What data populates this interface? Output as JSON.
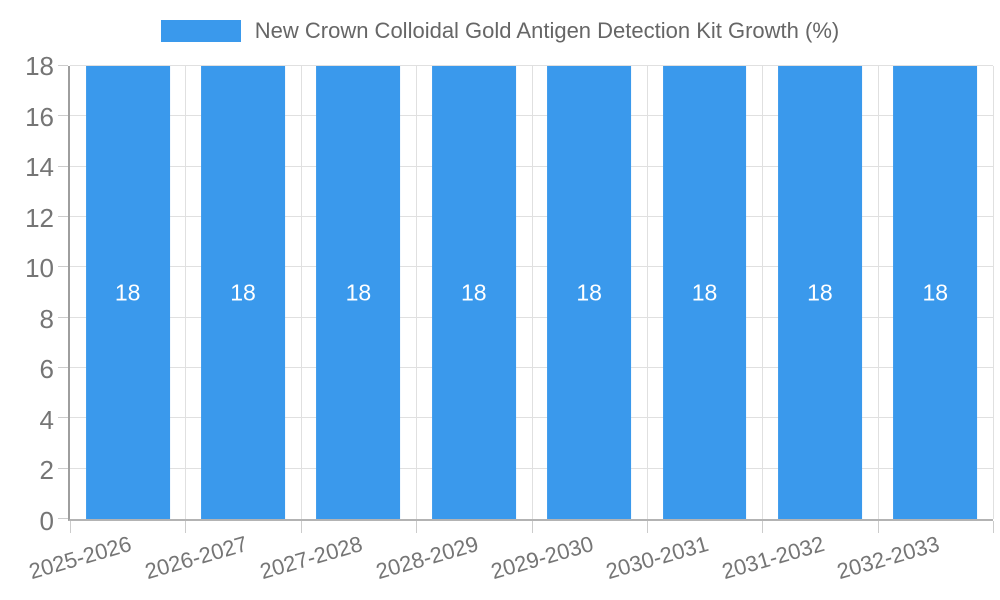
{
  "legend": {
    "label": "New Crown Colloidal Gold Antigen Detection Kit Growth (%)"
  },
  "chart_data": {
    "type": "bar",
    "title": "New Crown Colloidal Gold Antigen Detection Kit Growth (%)",
    "categories": [
      "2025-2026",
      "2026-2027",
      "2027-2028",
      "2028-2029",
      "2029-2030",
      "2030-2031",
      "2031-2032",
      "2032-2033"
    ],
    "values": [
      18,
      18,
      18,
      18,
      18,
      18,
      18,
      18
    ],
    "value_labels": [
      "18",
      "18",
      "18",
      "18",
      "18",
      "18",
      "18",
      "18"
    ],
    "yticks": [
      0,
      2,
      4,
      6,
      8,
      10,
      12,
      14,
      16,
      18
    ],
    "ylim": [
      0,
      18
    ],
    "xlabel": "",
    "ylabel": "",
    "grid": true,
    "legend_position": "top",
    "x_label_rotation_deg": -16,
    "colors": {
      "bar": "#3A99EC",
      "value_label": "#ffffff",
      "grid": "#e0e0e0",
      "tick_mark": "#cccccc",
      "axis_y_line": "#9e9e9e",
      "axis_x_line": "#b3b3b3",
      "tick_label": "#757575",
      "legend_text": "#666666"
    }
  }
}
